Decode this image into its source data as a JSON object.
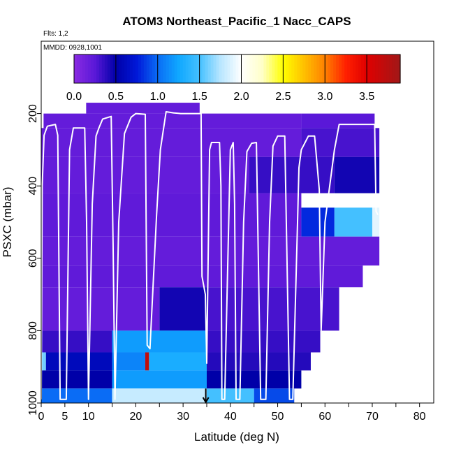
{
  "chart_data": {
    "type": "heatmap",
    "title": "ATOM3 Northeast_Pacific_1 Nacc_CAPS",
    "flights_label": "Flts: 1,2",
    "dates_label": "MMDD: 0928,1001",
    "xlabel": "Latitude (deg N)",
    "ylabel": "PSXC (mbar)",
    "xlim": [
      0,
      83
    ],
    "ylim": [
      1000,
      0
    ],
    "x_ticks": [
      0,
      5,
      10,
      20,
      30,
      40,
      50,
      60,
      70,
      80
    ],
    "x_tick_labels": [
      "0",
      "5",
      "10",
      "20",
      "30",
      "40",
      "50",
      "60",
      "70",
      "80"
    ],
    "x_minor_ticks": [
      15,
      25,
      35,
      45,
      55,
      65,
      75
    ],
    "y_ticks": [
      200,
      400,
      600,
      800,
      1000
    ],
    "y_tick_labels": [
      "200",
      "400",
      "600",
      "800",
      "1000"
    ],
    "colorbar": {
      "range": [
        0,
        3.9
      ],
      "ticks": [
        0.0,
        0.5,
        1.0,
        1.5,
        2.0,
        2.5,
        3.0,
        3.5
      ],
      "tick_labels": [
        "0.0",
        "0.5",
        "1.0",
        "1.5",
        "2.0",
        "2.5",
        "3.0",
        "3.5"
      ],
      "stops": [
        {
          "v": 0.0,
          "color": "#8a2be2"
        },
        {
          "v": 0.25,
          "color": "#5a18d8"
        },
        {
          "v": 0.5,
          "color": "#0000a8"
        },
        {
          "v": 0.75,
          "color": "#0018d8"
        },
        {
          "v": 1.0,
          "color": "#0a6cf5"
        },
        {
          "v": 1.25,
          "color": "#10a8ff"
        },
        {
          "v": 1.5,
          "color": "#44c0ff"
        },
        {
          "v": 1.75,
          "color": "#b8e6ff"
        },
        {
          "v": 2.0,
          "color": "#ffffff"
        },
        {
          "v": 2.25,
          "color": "#ffffc8"
        },
        {
          "v": 2.5,
          "color": "#ffff00"
        },
        {
          "v": 2.75,
          "color": "#ffc000"
        },
        {
          "v": 3.0,
          "color": "#ff8000"
        },
        {
          "v": 3.25,
          "color": "#ff2000"
        },
        {
          "v": 3.5,
          "color": "#e00000"
        },
        {
          "v": 3.9,
          "color": "#a01818"
        }
      ]
    },
    "cells": [
      {
        "lat": [
          9.5,
          33.5
        ],
        "p": [
          170,
          200
        ],
        "v": 0.2
      },
      {
        "lat": [
          0.5,
          55
        ],
        "p": [
          200,
          240
        ],
        "v": 0.2
      },
      {
        "lat": [
          55,
          70.5
        ],
        "p": [
          200,
          240
        ],
        "v": 0.25
      },
      {
        "lat": [
          0,
          55
        ],
        "p": [
          240,
          320
        ],
        "v": 0.2
      },
      {
        "lat": [
          55,
          71.5
        ],
        "p": [
          240,
          320
        ],
        "v": 0.3
      },
      {
        "lat": [
          0,
          44
        ],
        "p": [
          320,
          420
        ],
        "v": 0.2
      },
      {
        "lat": [
          44,
          62
        ],
        "p": [
          320,
          420
        ],
        "v": 0.35
      },
      {
        "lat": [
          62,
          71.5
        ],
        "p": [
          320,
          420
        ],
        "v": 0.45
      },
      {
        "lat": [
          0,
          55
        ],
        "p": [
          420,
          540
        ],
        "v": 0.22
      },
      {
        "lat": [
          55,
          62
        ],
        "p": [
          460,
          540
        ],
        "v": 0.8
      },
      {
        "lat": [
          62,
          70
        ],
        "p": [
          460,
          540
        ],
        "v": 1.5
      },
      {
        "lat": [
          70,
          71.5
        ],
        "p": [
          460,
          540
        ],
        "v": 1.9
      },
      {
        "lat": [
          0,
          71.5
        ],
        "p": [
          540,
          620
        ],
        "v": 0.2
      },
      {
        "lat": [
          0,
          68
        ],
        "p": [
          620,
          680
        ],
        "v": 0.22
      },
      {
        "lat": [
          0,
          25
        ],
        "p": [
          680,
          800
        ],
        "v": 0.2
      },
      {
        "lat": [
          25,
          35
        ],
        "p": [
          680,
          800
        ],
        "v": 0.45
      },
      {
        "lat": [
          35,
          63
        ],
        "p": [
          680,
          800
        ],
        "v": 0.3
      },
      {
        "lat": [
          0,
          15
        ],
        "p": [
          800,
          860
        ],
        "v": 0.35
      },
      {
        "lat": [
          15,
          35
        ],
        "p": [
          800,
          860
        ],
        "v": 1.2
      },
      {
        "lat": [
          35,
          59
        ],
        "p": [
          800,
          860
        ],
        "v": 0.35
      },
      {
        "lat": [
          0,
          1
        ],
        "p": [
          860,
          910
        ],
        "v": 1.6
      },
      {
        "lat": [
          1,
          15
        ],
        "p": [
          860,
          910
        ],
        "v": 0.6
      },
      {
        "lat": [
          15,
          22
        ],
        "p": [
          860,
          910
        ],
        "v": 1.1
      },
      {
        "lat": [
          22,
          22.8
        ],
        "p": [
          860,
          910
        ],
        "v": 3.7
      },
      {
        "lat": [
          22.8,
          35
        ],
        "p": [
          860,
          910
        ],
        "v": 1.3
      },
      {
        "lat": [
          35,
          57
        ],
        "p": [
          860,
          910
        ],
        "v": 0.4
      },
      {
        "lat": [
          0,
          15
        ],
        "p": [
          910,
          960
        ],
        "v": 0.5
      },
      {
        "lat": [
          15,
          35
        ],
        "p": [
          910,
          960
        ],
        "v": 1.2
      },
      {
        "lat": [
          35,
          55
        ],
        "p": [
          910,
          960
        ],
        "v": 0.5
      },
      {
        "lat": [
          0,
          15
        ],
        "p": [
          960,
          1000
        ],
        "v": 1.0
      },
      {
        "lat": [
          15,
          35
        ],
        "p": [
          960,
          1000
        ],
        "v": 1.8
      },
      {
        "lat": [
          35,
          45
        ],
        "p": [
          960,
          1000
        ],
        "v": 1.5
      },
      {
        "lat": [
          45,
          53.5
        ],
        "p": [
          960,
          1000
        ],
        "v": 0.9
      }
    ],
    "aircraft_track": [
      [
        0,
        990
      ],
      [
        0.2,
        400
      ],
      [
        0.6,
        260
      ],
      [
        1.3,
        235
      ],
      [
        3.0,
        230
      ],
      [
        3.5,
        260
      ],
      [
        4.0,
        990
      ],
      [
        5.3,
        990
      ],
      [
        6.0,
        300
      ],
      [
        6.8,
        240
      ],
      [
        9.2,
        240
      ],
      [
        9.6,
        500
      ],
      [
        10.0,
        990
      ],
      [
        10.8,
        450
      ],
      [
        11.6,
        262
      ],
      [
        12.2,
        240
      ],
      [
        13.0,
        215
      ],
      [
        14.8,
        208
      ],
      [
        15.2,
        560
      ],
      [
        15.6,
        990
      ],
      [
        16.4,
        500
      ],
      [
        17.6,
        255
      ],
      [
        19.0,
        210
      ],
      [
        20.0,
        200
      ],
      [
        22.0,
        202
      ],
      [
        22.4,
        840
      ],
      [
        23.0,
        850
      ],
      [
        24.4,
        480
      ],
      [
        25.2,
        300
      ],
      [
        26.4,
        195
      ],
      [
        28.0,
        198
      ],
      [
        29.5,
        200
      ],
      [
        33.8,
        200
      ],
      [
        34.0,
        650
      ],
      [
        34.7,
        700
      ],
      [
        35.0,
        890
      ],
      [
        35.6,
        300
      ],
      [
        36.0,
        280
      ],
      [
        37.7,
        280
      ],
      [
        38.0,
        400
      ],
      [
        38.2,
        990
      ],
      [
        38.8,
        990
      ],
      [
        40.0,
        300
      ],
      [
        40.6,
        280
      ],
      [
        40.9,
        450
      ],
      [
        41.2,
        990
      ],
      [
        42.0,
        990
      ],
      [
        42.8,
        500
      ],
      [
        43.5,
        305
      ],
      [
        44.5,
        282
      ],
      [
        45.5,
        280
      ],
      [
        46.4,
        990
      ],
      [
        47.5,
        990
      ],
      [
        48.3,
        500
      ],
      [
        49.0,
        290
      ],
      [
        50.0,
        262
      ],
      [
        51.5,
        262
      ],
      [
        52.5,
        990
      ],
      [
        53.2,
        990
      ],
      [
        54.2,
        500
      ],
      [
        54.5,
        350
      ],
      [
        55.0,
        300
      ],
      [
        56.5,
        262
      ],
      [
        57.8,
        262
      ],
      [
        58.8,
        410
      ],
      [
        59.2,
        800
      ],
      [
        60.0,
        500
      ],
      [
        62.0,
        300
      ],
      [
        63.0,
        230
      ],
      [
        70.5,
        230
      ],
      [
        70.8,
        470
      ],
      [
        71.2,
        480
      ]
    ],
    "arrow": {
      "lat": 34.8,
      "p_from": 960,
      "p_to": 1000
    }
  }
}
